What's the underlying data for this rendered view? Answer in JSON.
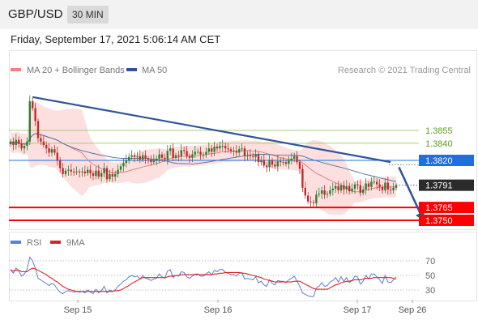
{
  "header": {
    "symbol": "GBP/USD",
    "timeframe": "30 MIN",
    "datetime": "Friday, September 17, 2021 5:06:14 AM CET"
  },
  "legend": {
    "items": [
      {
        "label": "MA 20 + Bollinger Bands",
        "color": "#f08080"
      },
      {
        "label": "MA 50",
        "color": "#2f5597"
      }
    ],
    "source": "Research © 2021 Trading Central"
  },
  "rsi_legend": {
    "items": [
      {
        "label": "RSI",
        "color": "#5b7fd6"
      },
      {
        "label": "9MA",
        "color": "#e02020"
      }
    ]
  },
  "colors": {
    "up_candle": "#2e7d32",
    "down_candle": "#c62828",
    "trendline": "#2f5597",
    "bands_fill": "#fbd5d5",
    "support": "#ff0000",
    "resistance": "#1f6fe0",
    "pivot_line": "#1f6fe0",
    "target_line": "#8bc34a"
  },
  "chart_data": [
    {
      "type": "candlestick",
      "title": "GBP/USD 30 MIN",
      "x_ticks": [
        "Sep 15",
        "Sep 16",
        "Sep 17",
        "Sep 26"
      ],
      "ylim": [
        1.3745,
        1.3895
      ],
      "last_price": 1.3791,
      "levels": [
        {
          "label": "1.3855",
          "value": 1.3855,
          "kind": "target"
        },
        {
          "label": "1.3840",
          "value": 1.384,
          "kind": "target"
        },
        {
          "label": "1.3820",
          "value": 1.382,
          "kind": "pivot"
        },
        {
          "label": "1.3791",
          "value": 1.3791,
          "kind": "last"
        },
        {
          "label": "1.3765",
          "value": 1.3765,
          "kind": "support"
        },
        {
          "label": "1.3750",
          "value": 1.375,
          "kind": "support"
        }
      ],
      "trendline": {
        "start": {
          "x": 8,
          "y": 1.3894
        },
        "end": {
          "x": 138,
          "y": 1.3818
        }
      },
      "forecast_arrow": {
        "start": {
          "x": 141,
          "y": 1.3812
        },
        "end": {
          "x": 150,
          "y": 1.375
        }
      },
      "close": [
        1.3842,
        1.3838,
        1.3844,
        1.3839,
        1.3834,
        1.3837,
        1.3842,
        1.3889,
        1.3881,
        1.3866,
        1.3846,
        1.3842,
        1.3838,
        1.3834,
        1.3829,
        1.3833,
        1.3829,
        1.382,
        1.3811,
        1.3804,
        1.3808,
        1.3809,
        1.3807,
        1.3806,
        1.3807,
        1.3806,
        1.3807,
        1.3805,
        1.3809,
        1.3805,
        1.3802,
        1.3808,
        1.3801,
        1.3805,
        1.3811,
        1.3798,
        1.3804,
        1.3801,
        1.3804,
        1.3809,
        1.3813,
        1.3817,
        1.382,
        1.3824,
        1.3826,
        1.3824,
        1.3825,
        1.3821,
        1.3826,
        1.3822,
        1.3821,
        1.3818,
        1.382,
        1.3822,
        1.3827,
        1.3823,
        1.3821,
        1.3831,
        1.3834,
        1.3823,
        1.3826,
        1.3825,
        1.3832,
        1.3831,
        1.3825,
        1.3823,
        1.3827,
        1.383,
        1.383,
        1.3827,
        1.3827,
        1.383,
        1.3834,
        1.383,
        1.3836,
        1.3834,
        1.3837,
        1.3837,
        1.3834,
        1.3833,
        1.3831,
        1.3831,
        1.3829,
        1.3833,
        1.3834,
        1.3825,
        1.3826,
        1.3825,
        1.3824,
        1.3827,
        1.3818,
        1.382,
        1.3814,
        1.3812,
        1.382,
        1.3815,
        1.3813,
        1.3819,
        1.3818,
        1.3818,
        1.3816,
        1.382,
        1.3822,
        1.3825,
        1.3818,
        1.381,
        1.3788,
        1.3779,
        1.3772,
        1.3771,
        1.377,
        1.378,
        1.3781,
        1.3785,
        1.378,
        1.3781,
        1.3785,
        1.3787,
        1.379,
        1.3785,
        1.3791,
        1.3786,
        1.379,
        1.3784,
        1.3787,
        1.3792,
        1.3791,
        1.3782,
        1.3786,
        1.3793,
        1.3789,
        1.3795,
        1.3795,
        1.3792,
        1.3789,
        1.3785,
        1.3794,
        1.3786,
        1.3785,
        1.3788,
        1.3791
      ]
    },
    {
      "type": "line",
      "title": "RSI",
      "y_ticks": [
        70,
        50,
        30
      ],
      "ylim": [
        15,
        80
      ],
      "series": [
        {
          "name": "RSI",
          "values": [
            58,
            53,
            60,
            56,
            49,
            52,
            58,
            75,
            70,
            60,
            46,
            44,
            41,
            39,
            36,
            39,
            37,
            31,
            27,
            25,
            28,
            29,
            28,
            27,
            28,
            27,
            28,
            26,
            30,
            27,
            25,
            31,
            26,
            29,
            35,
            26,
            30,
            28,
            30,
            35,
            38,
            42,
            44,
            48,
            50,
            48,
            49,
            45,
            50,
            46,
            45,
            43,
            45,
            46,
            52,
            48,
            46,
            56,
            58,
            47,
            50,
            49,
            55,
            54,
            48,
            46,
            49,
            52,
            52,
            49,
            49,
            52,
            55,
            51,
            57,
            55,
            58,
            58,
            54,
            53,
            51,
            51,
            49,
            53,
            54,
            45,
            46,
            45,
            44,
            48,
            40,
            42,
            37,
            35,
            44,
            39,
            37,
            43,
            42,
            42,
            40,
            44,
            46,
            49,
            42,
            35,
            26,
            24,
            22,
            21,
            21,
            33,
            35,
            40,
            35,
            36,
            41,
            43,
            47,
            41,
            48,
            42,
            47,
            40,
            43,
            49,
            48,
            38,
            42,
            50,
            45,
            52,
            52,
            48,
            44,
            39,
            50,
            41,
            40,
            44,
            48
          ]
        },
        {
          "name": "9MA",
          "values": [
            58,
            56,
            57,
            57,
            55,
            55,
            55,
            58,
            60,
            59,
            57,
            55,
            53,
            51,
            48,
            46,
            43,
            41,
            38,
            35,
            33,
            31,
            30,
            29,
            28,
            28,
            28,
            28,
            28,
            28,
            28,
            28,
            28,
            28,
            28,
            28,
            28,
            28,
            29,
            29,
            30,
            32,
            34,
            36,
            39,
            41,
            43,
            45,
            47,
            47,
            47,
            47,
            47,
            47,
            47,
            47,
            47,
            48,
            49,
            49,
            50,
            50,
            51,
            51,
            51,
            51,
            51,
            51,
            51,
            51,
            51,
            51,
            51,
            51,
            52,
            52,
            53,
            53,
            54,
            54,
            54,
            54,
            54,
            54,
            53,
            53,
            52,
            51,
            50,
            49,
            48,
            47,
            45,
            44,
            43,
            42,
            41,
            41,
            41,
            41,
            41,
            41,
            41,
            42,
            42,
            42,
            40,
            38,
            36,
            34,
            32,
            31,
            31,
            31,
            31,
            31,
            33,
            35,
            37,
            38,
            40,
            41,
            42,
            42,
            43,
            44,
            44,
            44,
            45,
            46,
            46,
            46,
            47,
            47,
            47,
            47,
            47,
            47,
            47,
            46,
            45
          ]
        }
      ]
    }
  ]
}
